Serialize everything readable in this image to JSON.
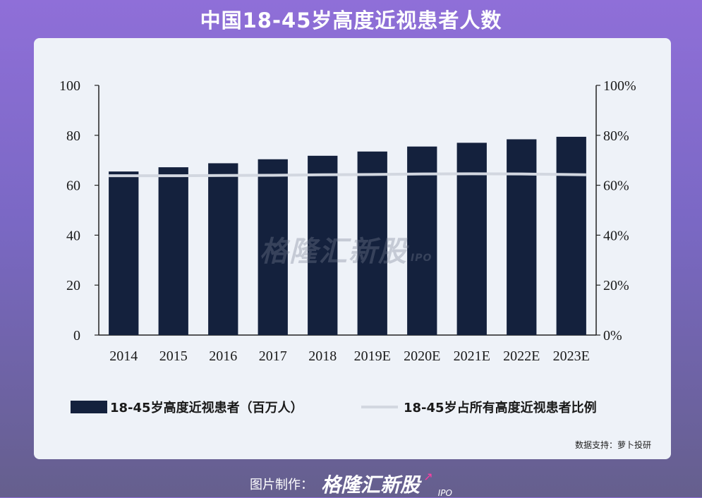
{
  "page": {
    "title": "中国18-45岁高度近视患者人数",
    "source_note": "数据支持：萝卜投研",
    "watermark": "格隆汇新股",
    "watermark_ipo": "IPO",
    "footer_made_by": "图片制作：",
    "footer_brand": "格隆汇新股",
    "footer_brand_ipo": "IPO"
  },
  "colors": {
    "bar": "#14213d",
    "line": "#d2d7e0",
    "axis": "#222222"
  },
  "chart_data": {
    "type": "bar",
    "title": "中国18-45岁高度近视患者人数",
    "categories": [
      "2014",
      "2015",
      "2016",
      "2017",
      "2018",
      "2019E",
      "2020E",
      "2021E",
      "2022E",
      "2023E"
    ],
    "series": [
      {
        "name": "18-45岁高度近视患者（百万人）",
        "type": "bar",
        "axis": "left",
        "values": [
          65.5,
          67.2,
          68.8,
          70.4,
          71.8,
          73.5,
          75.5,
          77.0,
          78.4,
          79.4
        ]
      },
      {
        "name": "18-45岁占所有高度近视患者比例",
        "type": "line",
        "axis": "right",
        "values": [
          63.8,
          63.8,
          63.9,
          64.0,
          64.2,
          64.3,
          64.5,
          64.6,
          64.5,
          64.2
        ]
      }
    ],
    "ylim": [
      0,
      100
    ],
    "yticks": [
      "0",
      "20",
      "40",
      "60",
      "80",
      "100"
    ],
    "y2lim": [
      0,
      100
    ],
    "y2ticks": [
      "0%",
      "20%",
      "40%",
      "60%",
      "80%",
      "100%"
    ],
    "grid": false,
    "legend_position": "bottom"
  }
}
